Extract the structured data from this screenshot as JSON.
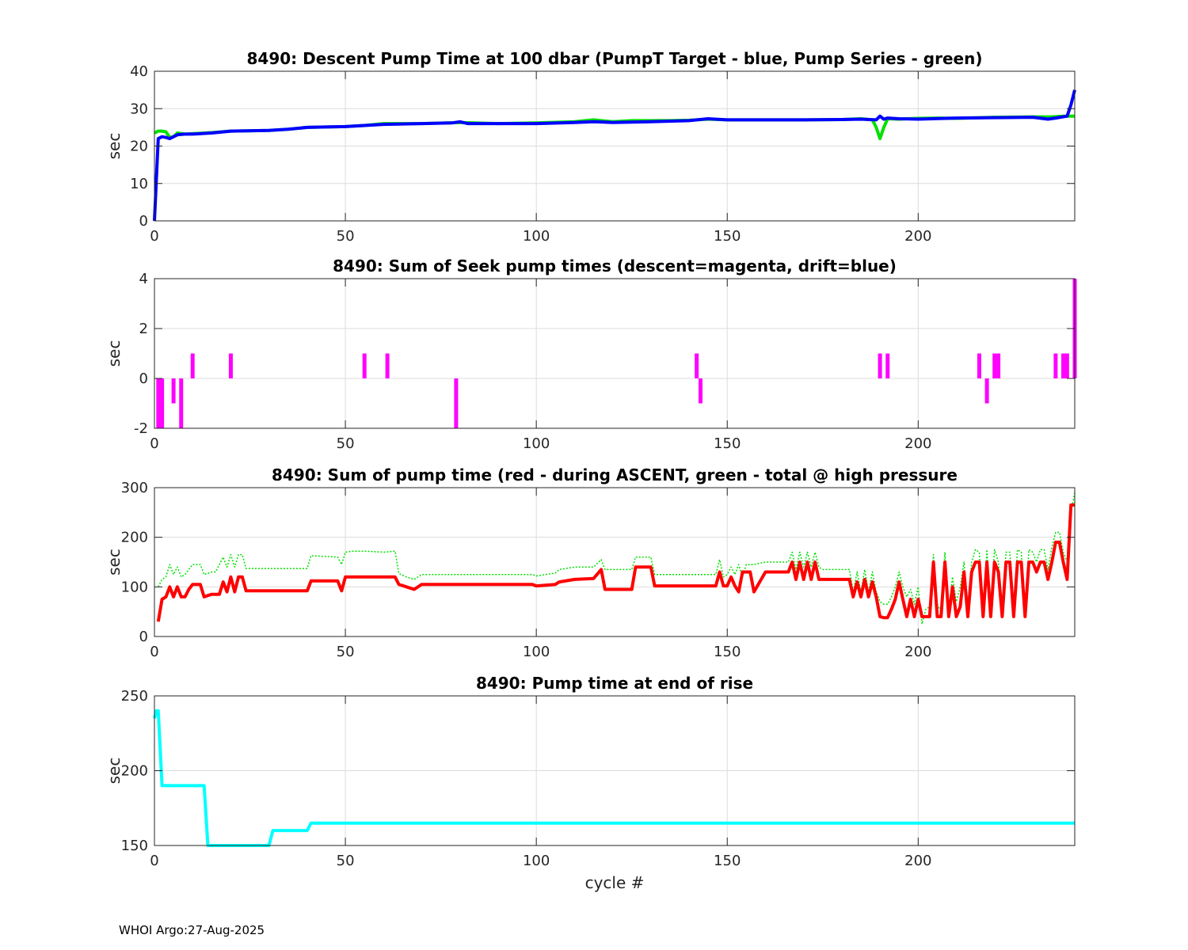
{
  "footer": "WHOI Argo:27-Aug-2025",
  "chart_data": [
    {
      "type": "line",
      "title": "8490: Descent Pump Time at 100 dbar (PumpT Target - blue, Pump Series - green)",
      "xlabel": "",
      "ylabel": "sec",
      "xlim": [
        0,
        241
      ],
      "ylim": [
        0,
        40
      ],
      "xticks": [
        0,
        50,
        100,
        150,
        200
      ],
      "yticks": [
        0,
        10,
        20,
        30,
        40
      ],
      "grid": true,
      "series": [
        {
          "color": "#00e000",
          "style": "solid",
          "x": [
            0,
            1,
            2,
            3,
            4,
            5,
            6,
            8,
            10,
            15,
            20,
            30,
            35,
            40,
            50,
            55,
            60,
            70,
            80,
            90,
            100,
            110,
            115,
            120,
            125,
            130,
            135,
            140,
            145,
            150,
            160,
            170,
            180,
            185,
            188,
            189,
            190,
            191,
            192,
            195,
            200,
            205,
            210,
            220,
            230,
            235,
            238,
            241
          ],
          "y": [
            23.5,
            24,
            24,
            23.8,
            22.3,
            22.5,
            23.5,
            23.2,
            23.3,
            23.6,
            24,
            24.2,
            24.5,
            25,
            25.2,
            25.5,
            26,
            26,
            26.3,
            26,
            26.2,
            26.5,
            27,
            26.5,
            26.8,
            26.8,
            26.8,
            26.9,
            27.2,
            27,
            27,
            27,
            27.1,
            27.3,
            27,
            25,
            22,
            25,
            27.3,
            27.2,
            27.4,
            27.5,
            27.4,
            27.7,
            27.8,
            27.8,
            28,
            28
          ]
        },
        {
          "color": "#0000ff",
          "style": "solid",
          "x": [
            0,
            1,
            2,
            3,
            4,
            5,
            6,
            8,
            10,
            15,
            20,
            30,
            35,
            40,
            50,
            55,
            60,
            70,
            78,
            80,
            82,
            90,
            100,
            110,
            115,
            120,
            130,
            140,
            145,
            150,
            160,
            170,
            180,
            185,
            189,
            190,
            191,
            192,
            195,
            200,
            210,
            220,
            230,
            234,
            236,
            239,
            240,
            241
          ],
          "y": [
            0,
            22,
            22.5,
            22.3,
            22,
            22.5,
            23,
            23.2,
            23.2,
            23.5,
            24,
            24.2,
            24.5,
            25,
            25.2,
            25.5,
            25.8,
            26,
            26.2,
            26.5,
            26,
            26,
            26,
            26.3,
            26.5,
            26.3,
            26.5,
            26.8,
            27.3,
            27,
            27,
            27,
            27.1,
            27.2,
            27,
            28,
            27.2,
            27.5,
            27.3,
            27.2,
            27.5,
            27.6,
            27.7,
            27.2,
            27.5,
            28,
            31,
            35
          ]
        }
      ]
    },
    {
      "type": "bar",
      "title": "8490: Sum of Seek pump times (descent=magenta, drift=blue)",
      "xlabel": "",
      "ylabel": "sec",
      "xlim": [
        0,
        241
      ],
      "ylim": [
        -2,
        4
      ],
      "xticks": [
        0,
        50,
        100,
        150,
        200
      ],
      "yticks": [
        -2,
        0,
        2,
        4
      ],
      "grid": true,
      "series": [
        {
          "color": "#ff00ff",
          "x": [
            1,
            2,
            5,
            7,
            10,
            20,
            55,
            61,
            79,
            142,
            143,
            190,
            192,
            216,
            218,
            220,
            221,
            236,
            238,
            239,
            241
          ],
          "y": [
            -2,
            -2,
            -1,
            -2,
            1,
            1,
            1,
            1,
            -2,
            1,
            -1,
            1,
            1,
            1,
            -1,
            1,
            1,
            1,
            1,
            1,
            4
          ]
        }
      ]
    },
    {
      "type": "line",
      "title": "8490: Sum of pump time (red - during ASCENT, green - total @ high pressure",
      "xlabel": "",
      "ylabel": "sec",
      "xlim": [
        0,
        241
      ],
      "ylim": [
        0,
        300
      ],
      "xticks": [
        0,
        50,
        100,
        150,
        200
      ],
      "yticks": [
        0,
        100,
        200,
        300
      ],
      "grid": true,
      "series": [
        {
          "color": "#00e000",
          "style": "dotted",
          "x": [
            1,
            2,
            3,
            4,
            5,
            6,
            7,
            8,
            9,
            10,
            12,
            13,
            15,
            16,
            17,
            18,
            19,
            20,
            21,
            22,
            23,
            24,
            30,
            40,
            41,
            48,
            49,
            50,
            52,
            55,
            60,
            63,
            64,
            66,
            68,
            70,
            80,
            99,
            100,
            105,
            106,
            110,
            115,
            117,
            118,
            125,
            126,
            130,
            131,
            140,
            147,
            148,
            149,
            150,
            151,
            152,
            153,
            154,
            155,
            156,
            157,
            160,
            166,
            167,
            168,
            169,
            170,
            171,
            172,
            173,
            174,
            175,
            176,
            182,
            183,
            184,
            185,
            186,
            187,
            188,
            189,
            190,
            191,
            192,
            193,
            194,
            195,
            196,
            197,
            198,
            199,
            200,
            201,
            202,
            203,
            204,
            205,
            206,
            207,
            208,
            209,
            210,
            211,
            212,
            213,
            214,
            215,
            216,
            217,
            218,
            219,
            220,
            221,
            222,
            223,
            224,
            225,
            226,
            227,
            228,
            229,
            230,
            231,
            232,
            233,
            234,
            235,
            236,
            237,
            238,
            239,
            240,
            241
          ],
          "y": [
            100,
            115,
            120,
            145,
            125,
            140,
            120,
            125,
            135,
            145,
            145,
            125,
            130,
            130,
            145,
            160,
            140,
            165,
            140,
            165,
            165,
            137,
            137,
            137,
            163,
            160,
            145,
            170,
            172,
            172,
            170,
            172,
            127,
            120,
            115,
            125,
            125,
            125,
            122,
            128,
            135,
            140,
            140,
            155,
            135,
            135,
            160,
            160,
            125,
            125,
            125,
            155,
            120,
            125,
            140,
            125,
            145,
            120,
            145,
            145,
            145,
            150,
            150,
            170,
            135,
            170,
            140,
            170,
            140,
            170,
            140,
            135,
            135,
            135,
            90,
            130,
            90,
            135,
            90,
            130,
            90,
            70,
            65,
            65,
            80,
            100,
            130,
            100,
            80,
            95,
            65,
            100,
            25,
            55,
            60,
            165,
            65,
            50,
            170,
            55,
            120,
            70,
            100,
            150,
            55,
            150,
            175,
            170,
            55,
            175,
            55,
            175,
            150,
            50,
            170,
            170,
            60,
            175,
            170,
            55,
            175,
            170,
            150,
            175,
            175,
            135,
            180,
            210,
            210,
            170,
            150,
            250,
            290
          ]
        },
        {
          "color": "#ff0000",
          "style": "solid",
          "x": [
            1,
            2,
            3,
            4,
            5,
            6,
            7,
            8,
            9,
            10,
            12,
            13,
            15,
            16,
            17,
            18,
            19,
            20,
            21,
            22,
            23,
            24,
            30,
            40,
            41,
            48,
            49,
            50,
            52,
            55,
            60,
            63,
            64,
            66,
            68,
            70,
            80,
            99,
            100,
            105,
            106,
            110,
            115,
            117,
            118,
            125,
            126,
            130,
            131,
            140,
            147,
            148,
            149,
            150,
            151,
            152,
            153,
            154,
            155,
            156,
            157,
            160,
            166,
            167,
            168,
            169,
            170,
            171,
            172,
            173,
            174,
            175,
            176,
            182,
            183,
            184,
            185,
            186,
            187,
            188,
            189,
            190,
            191,
            192,
            193,
            194,
            195,
            196,
            197,
            198,
            199,
            200,
            201,
            202,
            203,
            204,
            205,
            206,
            207,
            208,
            209,
            210,
            211,
            212,
            213,
            214,
            215,
            216,
            217,
            218,
            219,
            220,
            221,
            222,
            223,
            224,
            225,
            226,
            227,
            228,
            229,
            230,
            231,
            232,
            233,
            234,
            235,
            236,
            237,
            238,
            239,
            240,
            241
          ],
          "y": [
            30,
            75,
            80,
            100,
            80,
            100,
            80,
            80,
            95,
            105,
            105,
            80,
            85,
            85,
            85,
            110,
            90,
            120,
            90,
            120,
            120,
            92,
            92,
            92,
            112,
            112,
            92,
            120,
            120,
            120,
            120,
            120,
            105,
            100,
            95,
            105,
            105,
            105,
            102,
            105,
            110,
            115,
            117,
            135,
            95,
            95,
            140,
            140,
            102,
            102,
            102,
            130,
            102,
            102,
            120,
            102,
            90,
            130,
            130,
            130,
            90,
            130,
            130,
            150,
            115,
            150,
            115,
            150,
            115,
            150,
            115,
            115,
            115,
            115,
            80,
            110,
            80,
            115,
            80,
            110,
            80,
            40,
            38,
            38,
            55,
            75,
            110,
            75,
            40,
            75,
            40,
            75,
            40,
            40,
            40,
            150,
            40,
            40,
            150,
            40,
            100,
            40,
            60,
            130,
            40,
            130,
            150,
            150,
            40,
            150,
            40,
            150,
            130,
            40,
            150,
            150,
            40,
            150,
            150,
            40,
            150,
            150,
            130,
            150,
            150,
            115,
            150,
            190,
            190,
            150,
            115,
            265,
            265
          ]
        }
      ]
    },
    {
      "type": "line",
      "title": "8490: Pump time at end of rise",
      "xlabel": "cycle #",
      "ylabel": "sec",
      "xlim": [
        0,
        241
      ],
      "ylim": [
        150,
        250
      ],
      "xticks": [
        0,
        50,
        100,
        150,
        200
      ],
      "yticks": [
        150,
        200,
        250
      ],
      "grid": true,
      "series": [
        {
          "color": "#00ffff",
          "style": "solid",
          "x": [
            0,
            0.5,
            1,
            2,
            13,
            14,
            30,
            31,
            40,
            41,
            241
          ],
          "y": [
            235,
            240,
            240,
            190,
            190,
            150,
            150,
            160,
            160,
            165,
            165
          ]
        }
      ]
    }
  ]
}
